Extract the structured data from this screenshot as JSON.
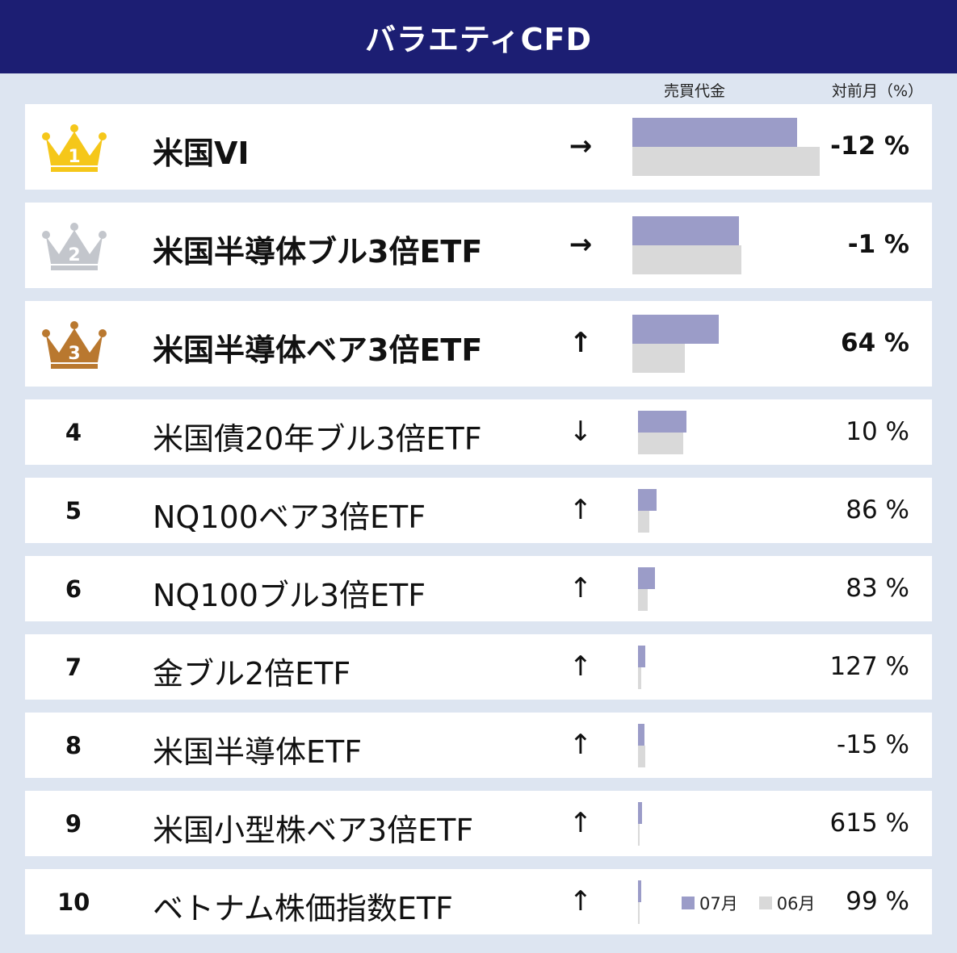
{
  "header": {
    "title": "バラエティCFD"
  },
  "columns": {
    "trading_value": "売買代金",
    "mom": "対前月（%）"
  },
  "legend": {
    "current": "07月",
    "previous": "06月"
  },
  "colors": {
    "header_bg": "#1c1e73",
    "current_bar": "#9b9cc8",
    "previous_bar": "#d9d9d9",
    "gold": "#f5c71a",
    "silver": "#c3c6cc",
    "bronze": "#b9782f"
  },
  "chart_data": {
    "type": "bar",
    "orientation": "horizontal",
    "units": "relative trading value (scale 0–1 = largest bar)",
    "categories": [
      "米国VI",
      "米国半導体ブル3倍ETF",
      "米国半導体ベア3倍ETF",
      "米国債20年ブル3倍ETF",
      "NQ100ベア3倍ETF",
      "NQ100ブル3倍ETF",
      "金ブル2倍ETF",
      "米国半導体ETF",
      "米国小型株ベア3倍ETF",
      "ベトナム株価指数ETF"
    ],
    "series": [
      {
        "name": "07月",
        "values": [
          0.88,
          0.57,
          0.46,
          0.26,
          0.1,
          0.09,
          0.04,
          0.035,
          0.02,
          0.018
        ]
      },
      {
        "name": "06月",
        "values": [
          1.0,
          0.58,
          0.28,
          0.24,
          0.06,
          0.05,
          0.018,
          0.04,
          0.004,
          0.009
        ]
      }
    ]
  },
  "rows": [
    {
      "rank": "1",
      "medal": "gold",
      "name": "米国VI",
      "arrow": "→",
      "pct": "-12",
      "unit": "%"
    },
    {
      "rank": "2",
      "medal": "silver",
      "name": "米国半導体ブル3倍ETF",
      "arrow": "→",
      "pct": "-1",
      "unit": "%"
    },
    {
      "rank": "3",
      "medal": "bronze",
      "name": "米国半導体ベア3倍ETF",
      "arrow": "↑",
      "pct": "64",
      "unit": "%"
    },
    {
      "rank": "4",
      "medal": "",
      "name": "米国債20年ブル3倍ETF",
      "arrow": "↓",
      "pct": "10",
      "unit": "%"
    },
    {
      "rank": "5",
      "medal": "",
      "name": "NQ100ベア3倍ETF",
      "arrow": "↑",
      "pct": "86",
      "unit": "%"
    },
    {
      "rank": "6",
      "medal": "",
      "name": "NQ100ブル3倍ETF",
      "arrow": "↑",
      "pct": "83",
      "unit": "%"
    },
    {
      "rank": "7",
      "medal": "",
      "name": "金ブル2倍ETF",
      "arrow": "↑",
      "pct": "127",
      "unit": "%"
    },
    {
      "rank": "8",
      "medal": "",
      "name": "米国半導体ETF",
      "arrow": "↑",
      "pct": "-15",
      "unit": "%"
    },
    {
      "rank": "9",
      "medal": "",
      "name": "米国小型株ベア3倍ETF",
      "arrow": "↑",
      "pct": "615",
      "unit": "%"
    },
    {
      "rank": "10",
      "medal": "",
      "name": "ベトナム株価指数ETF",
      "arrow": "↑",
      "pct": "99",
      "unit": "%"
    }
  ]
}
